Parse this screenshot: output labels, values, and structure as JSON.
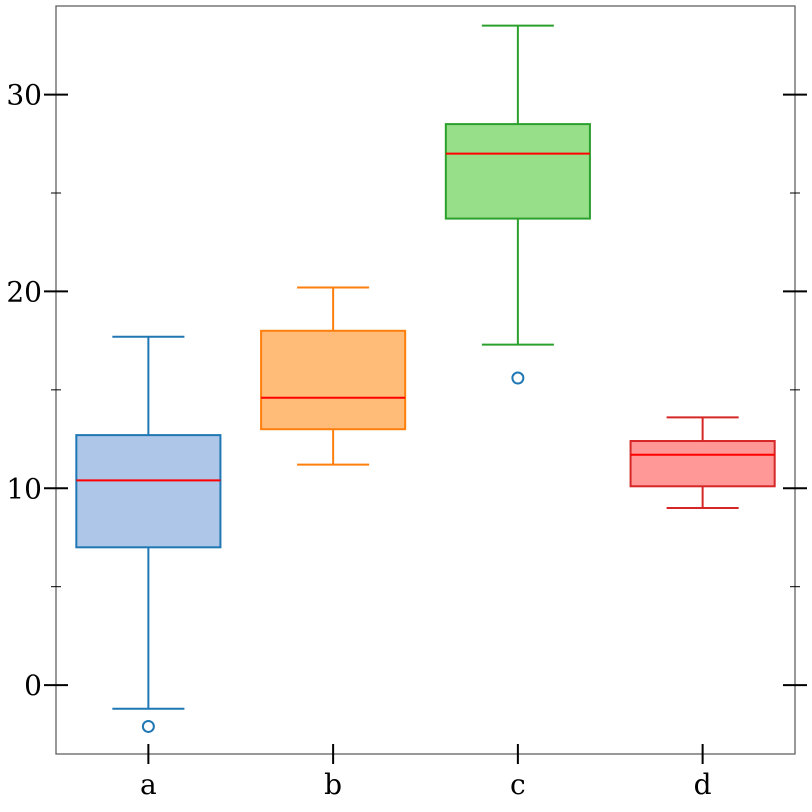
{
  "chart_data": {
    "type": "box",
    "title": "",
    "xlabel": "",
    "ylabel": "",
    "categories": [
      "a",
      "b",
      "c",
      "d"
    ],
    "ylim": [
      -3.5,
      34.5
    ],
    "y_ticks_major": [
      0,
      10,
      20,
      30
    ],
    "y_tick_labels": [
      "0",
      "10",
      "20",
      "30"
    ],
    "y_ticks_minor": [
      5,
      15,
      25
    ],
    "grid": false,
    "median_color": "#ff0000",
    "boxes": [
      {
        "category": "a",
        "whisker_low": -1.2,
        "q1": 7.0,
        "median": 10.4,
        "q3": 12.7,
        "whisker_high": 17.7,
        "outliers": [
          -2.1
        ],
        "fill": "#aec7e8",
        "edge": "#1f77b4"
      },
      {
        "category": "b",
        "whisker_low": 11.2,
        "q1": 13.0,
        "median": 14.6,
        "q3": 18.0,
        "whisker_high": 20.2,
        "outliers": [],
        "fill": "#ffbb78",
        "edge": "#ff7f0e"
      },
      {
        "category": "c",
        "whisker_low": 17.3,
        "q1": 23.7,
        "median": 27.0,
        "q3": 28.5,
        "whisker_high": 33.5,
        "outliers": [
          15.6
        ],
        "fill": "#98df8a",
        "edge": "#2ca02c"
      },
      {
        "category": "d",
        "whisker_low": 9.0,
        "q1": 10.1,
        "median": 11.7,
        "q3": 12.4,
        "whisker_high": 13.6,
        "outliers": [],
        "fill": "#ff9896",
        "edge": "#d62728"
      }
    ],
    "outlier_color": "#1f77b4"
  }
}
